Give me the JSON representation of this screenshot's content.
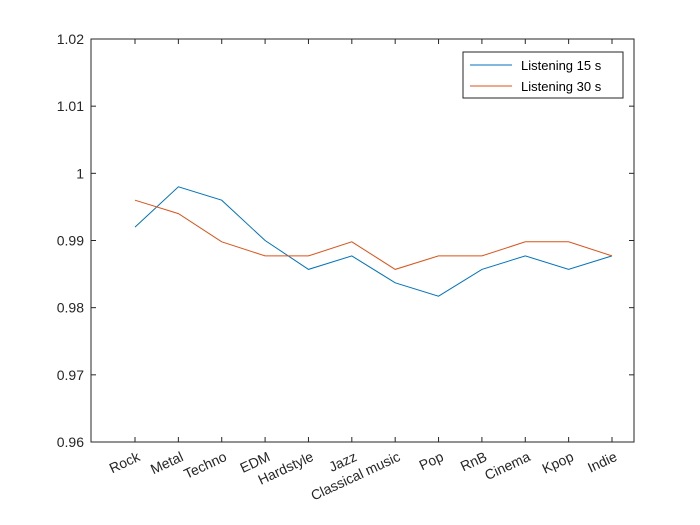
{
  "chart_data": {
    "type": "line",
    "categories": [
      "Rock",
      "Metal",
      "Techno",
      "EDM",
      "Hardstyle",
      "Jazz",
      "Classical music",
      "Pop",
      "RnB",
      "Cinema",
      "Kpop",
      "Indie"
    ],
    "series": [
      {
        "name": "Listening 15 s",
        "color": "#0072BD",
        "values": [
          0.992,
          0.998,
          0.996,
          0.99,
          0.9857,
          0.9877,
          0.9837,
          0.9817,
          0.9857,
          0.9877,
          0.9857,
          0.9877
        ]
      },
      {
        "name": "Listening 30 s",
        "color": "#D95319",
        "values": [
          0.996,
          0.994,
          0.9898,
          0.9877,
          0.9877,
          0.9898,
          0.9857,
          0.9877,
          0.9877,
          0.9898,
          0.9898,
          0.9877
        ]
      }
    ],
    "ylim": [
      0.96,
      1.02
    ],
    "yticks": [
      "0.96",
      "0.97",
      "0.98",
      "0.99",
      "1",
      "1.01",
      "1.02"
    ],
    "legend_position": "top-right",
    "grid": false
  }
}
